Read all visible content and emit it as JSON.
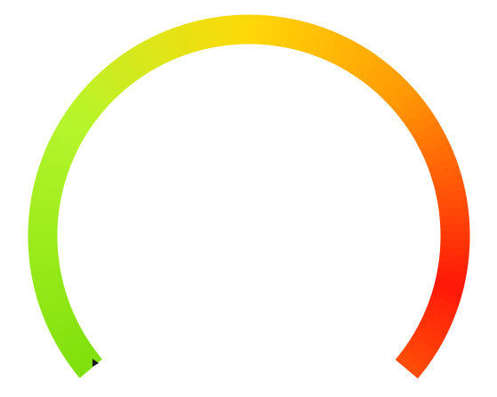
{
  "gauge": {
    "colors": {
      "start": "#7fe00a",
      "lime": "#b6f52c",
      "yellow": "#ffd808",
      "orange": "#ff9a05",
      "red": "#ff1808",
      "end": "#ff4e08"
    }
  }
}
